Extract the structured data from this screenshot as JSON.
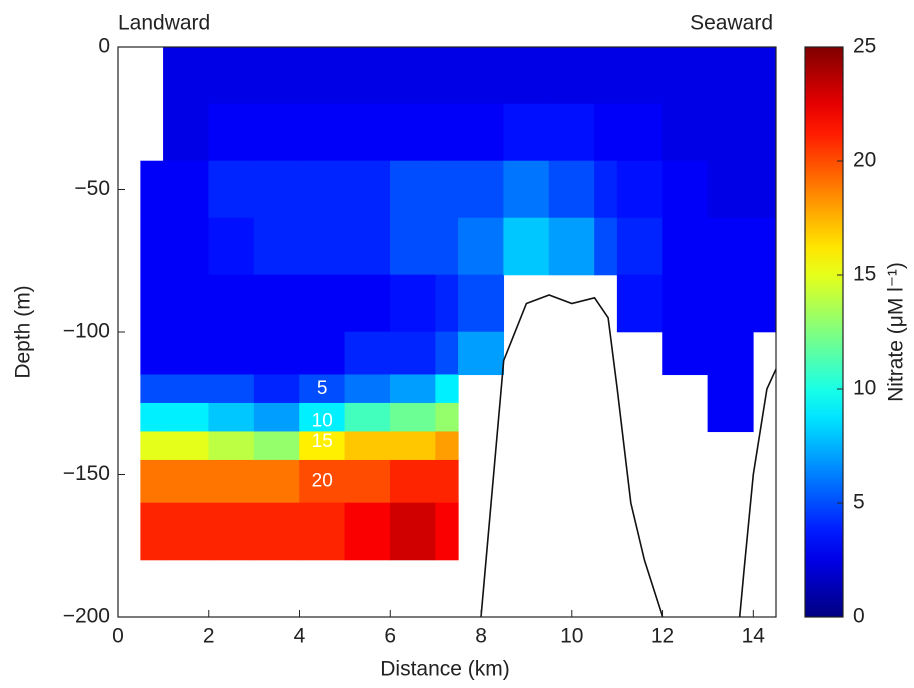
{
  "chart_data": {
    "type": "section",
    "annotations": [
      "Landward",
      "Seaward"
    ],
    "x_label": "Distance (km)",
    "y_label": "Depth (m)",
    "xlim": [
      0,
      14.5
    ],
    "xticks": [
      0,
      2,
      4,
      6,
      8,
      10,
      12,
      14
    ],
    "ylim": [
      -200,
      0
    ],
    "yticks": [
      {
        "value": 0,
        "label": "0"
      },
      {
        "value": -50,
        "label": "−50"
      },
      {
        "value": -100,
        "label": "−100"
      },
      {
        "value": -150,
        "label": "−150"
      },
      {
        "value": -200,
        "label": "−200"
      }
    ],
    "x_bins": [
      0.5,
      1,
      2,
      3,
      4,
      5,
      6,
      7,
      7.5,
      8.5,
      9.5,
      10.5,
      11,
      12,
      13,
      14,
      14.5
    ],
    "depth_bins": [
      0,
      -20,
      -40,
      -60,
      -80,
      -100,
      -115,
      -125,
      -135,
      -145,
      -160,
      -180
    ],
    "values": [
      [
        null,
        null,
        3,
        3,
        3,
        3,
        5,
        9,
        15,
        19,
        21
      ],
      [
        2.5,
        2.5,
        3,
        3,
        3,
        3,
        5,
        9,
        15,
        19,
        21
      ],
      [
        2.5,
        3,
        4,
        3.5,
        3,
        3,
        5,
        8,
        14,
        19,
        21
      ],
      [
        2.5,
        3,
        4,
        4,
        3,
        3,
        4,
        7,
        13,
        19,
        21
      ],
      [
        2.5,
        3,
        4,
        4,
        3,
        3,
        5,
        9,
        16,
        20,
        21
      ],
      [
        2.5,
        3,
        4,
        4,
        3,
        4,
        6,
        11,
        17,
        20,
        22
      ],
      [
        2.5,
        3,
        5,
        5,
        3.5,
        4,
        7,
        12,
        17,
        21,
        23
      ],
      [
        2.5,
        3,
        5,
        5,
        4,
        5,
        9,
        13,
        18,
        21,
        22
      ],
      [
        2.5,
        3,
        5,
        6,
        5,
        7,
        null,
        null,
        null,
        null,
        null
      ],
      [
        2.5,
        3.5,
        6,
        8,
        null,
        null,
        null,
        null,
        null,
        null,
        null
      ],
      [
        2.5,
        3.5,
        5,
        7,
        null,
        null,
        null,
        null,
        null,
        null,
        null
      ],
      [
        2.5,
        3,
        4,
        5,
        null,
        null,
        null,
        null,
        null,
        null,
        null
      ],
      [
        2.5,
        3,
        3.5,
        4,
        3.5,
        null,
        null,
        null,
        null,
        null,
        null
      ],
      [
        2.5,
        2.5,
        3,
        3,
        3,
        3,
        null,
        null,
        null,
        null,
        null
      ],
      [
        2.5,
        2.5,
        2.5,
        3,
        3,
        3,
        3,
        3,
        null,
        null,
        null
      ],
      [
        2.5,
        2.5,
        2.5,
        3,
        3,
        null,
        null,
        null,
        null,
        null,
        null
      ]
    ],
    "contour_levels": [
      5,
      10,
      15,
      20
    ],
    "bathymetry": {
      "x": [
        8,
        8.5,
        9,
        9.5,
        10,
        10.5,
        10.8,
        11,
        11.3,
        11.6,
        12,
        null,
        13.7,
        13.8,
        14,
        14.3,
        14.5
      ],
      "depth": [
        -200,
        -110,
        -90,
        -87,
        -90,
        -88,
        -95,
        -120,
        -160,
        -180,
        -200,
        null,
        -200,
        -183,
        -150,
        -120,
        -113
      ]
    },
    "colorbar": {
      "label": "Nitrate (μM l⁻¹)",
      "lim": [
        0,
        25
      ],
      "ticks": [
        0,
        5,
        10,
        15,
        20,
        25
      ]
    }
  }
}
